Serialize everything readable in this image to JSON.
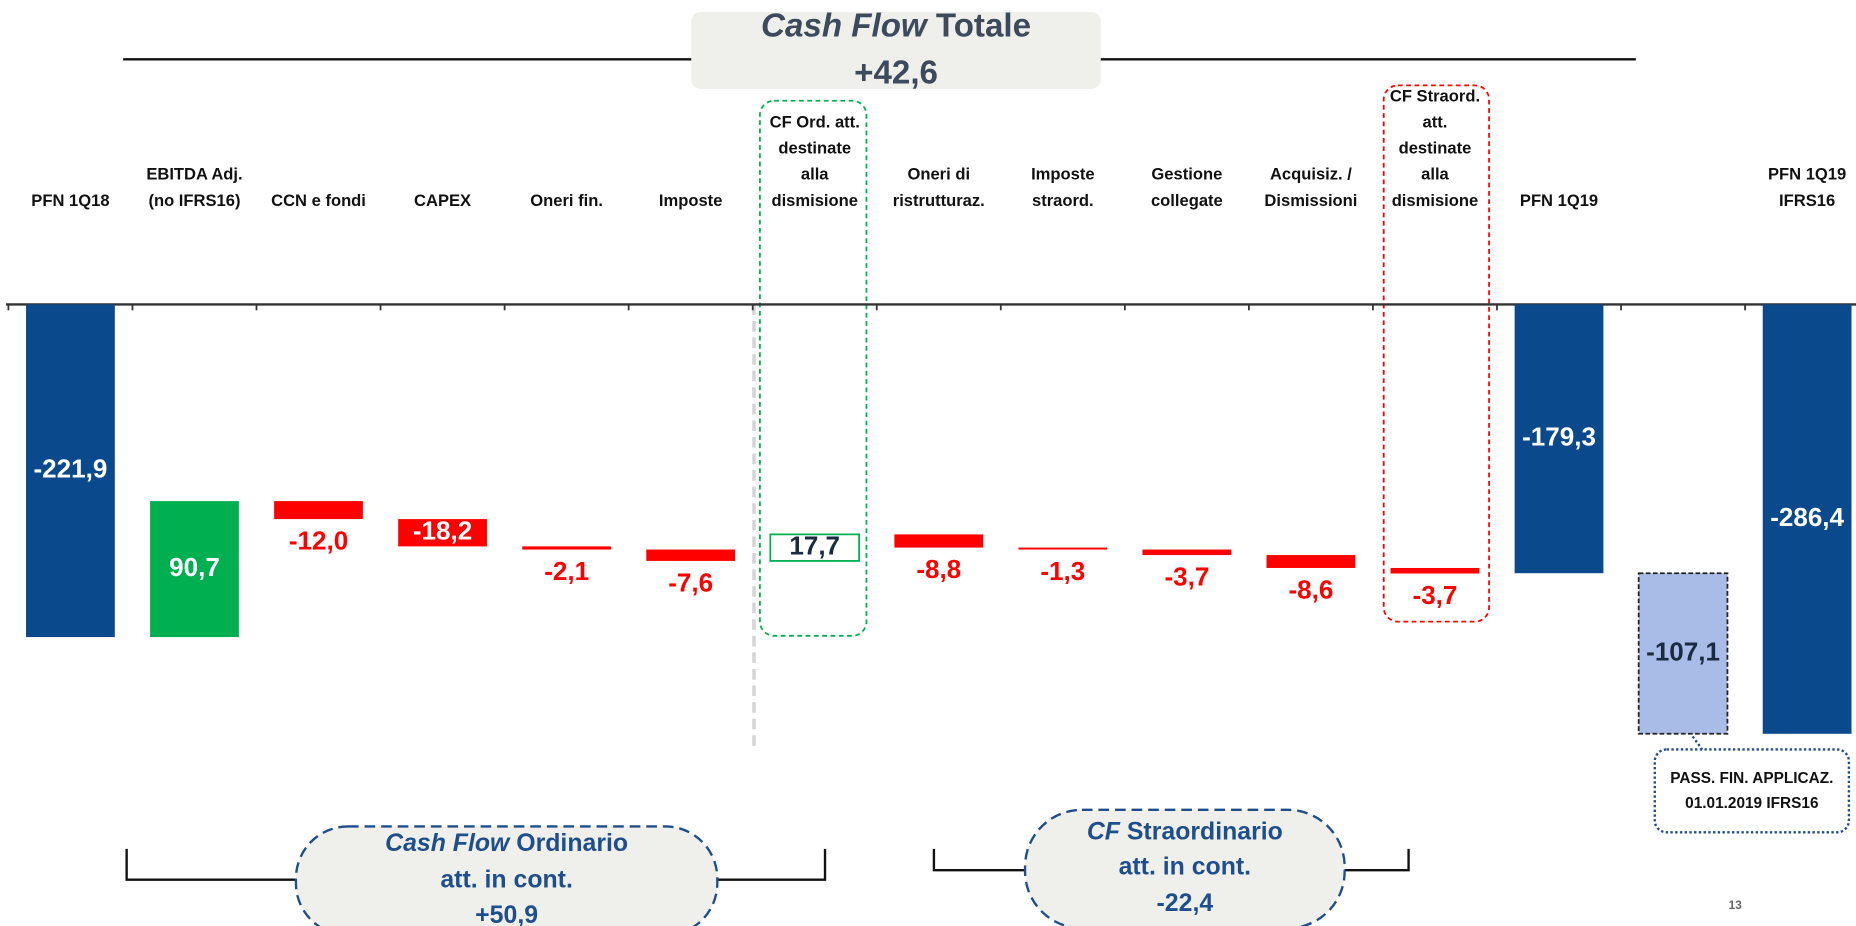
{
  "chart_data": {
    "type": "waterfall",
    "title": {
      "italic": "Cash Flow",
      "text": "Totale",
      "value_label": "+42,6"
    },
    "categories": [
      [
        "PFN 1Q18"
      ],
      [
        "EBITDA Adj.",
        "(no IFRS16)"
      ],
      [
        "CCN e fondi"
      ],
      [
        "CAPEX"
      ],
      [
        "Oneri fin."
      ],
      [
        "Imposte"
      ],
      [
        "CF Ord. att.",
        "destinate",
        "alla",
        "dismisione"
      ],
      [
        "Oneri di",
        "ristrutturaz."
      ],
      [
        "Imposte",
        "straord."
      ],
      [
        "Gestione",
        "collegate"
      ],
      [
        "Acquisiz. /",
        "Dismissioni"
      ],
      [
        "CF Straord.",
        "att.",
        "destinate",
        "alla",
        "dismisione"
      ],
      [
        "PFN 1Q19"
      ],
      [],
      [
        "PFN 1Q19",
        "IFRS16"
      ]
    ],
    "values": [
      -221.9,
      90.7,
      -12.0,
      -18.2,
      -2.1,
      -7.6,
      17.7,
      -8.8,
      -1.3,
      -3.7,
      -8.6,
      -3.7,
      -179.3,
      -107.1,
      -286.4
    ],
    "value_labels": [
      "-221,9",
      "90,7",
      "-12,0",
      "-18,2",
      "-2,1",
      "-7,6",
      "17,7",
      "-8,8",
      "-1,3",
      "-3,7",
      "-8,6",
      "-3,7",
      "-179,3",
      "-107,1",
      "-286,4"
    ],
    "measure": [
      "absolute",
      "relative",
      "relative",
      "relative",
      "relative",
      "relative",
      "relative",
      "relative",
      "relative",
      "relative",
      "relative",
      "relative",
      "absolute",
      "relative",
      "absolute"
    ],
    "colors": [
      "#0a4a8c",
      "#00b050",
      "#ff0000",
      "#ff0000",
      "#ff0000",
      "#ff0000",
      "#ffffff",
      "#ff0000",
      "#ff0000",
      "#ff0000",
      "#ff0000",
      "#ff0000",
      "#0a4a8c",
      "#a9bce8",
      "#0a4a8c"
    ],
    "borders": [
      null,
      null,
      null,
      null,
      null,
      null,
      "#00b050",
      null,
      null,
      null,
      null,
      null,
      null,
      "#222222",
      null
    ],
    "label_colors": [
      "#ffffff",
      "#ffffff",
      "#ff0000",
      "#ffffff",
      "#ff0000",
      "#ff0000",
      "#1a2a40",
      "#ff0000",
      "#ff0000",
      "#ff0000",
      "#ff0000",
      "#ff0000",
      "#ffffff",
      "#1a2a40",
      "#ffffff"
    ],
    "ylim": [
      -300,
      0
    ],
    "summaries": [
      {
        "italic": "Cash Flow",
        "text": "Ordinario",
        "sub": "att. in cont.",
        "value_label": "+50,9"
      },
      {
        "italic": "CF",
        "text": "Straordinario",
        "sub": "att. in cont.",
        "value_label": "-22,4"
      }
    ],
    "callout": [
      "PASS. FIN. APPLICAZ.",
      "01.01.2019 IFRS16"
    ],
    "page_number": "13"
  }
}
